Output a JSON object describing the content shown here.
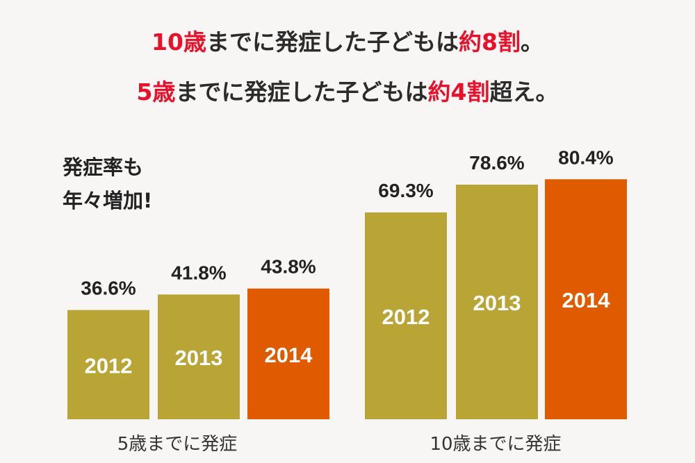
{
  "colors": {
    "highlight": "#e8102a",
    "text": "#2b2b2b",
    "olive": "#b9a535",
    "orange": "#e05a00"
  },
  "headline": [
    [
      {
        "t": "10歳",
        "hl": true
      },
      {
        "t": "までに発症した子どもは",
        "hl": false
      },
      {
        "t": "約8割",
        "hl": true
      },
      {
        "t": "。",
        "hl": false
      }
    ],
    [
      {
        "t": "5歳",
        "hl": true
      },
      {
        "t": "までに発症した子どもは",
        "hl": false
      },
      {
        "t": "約4割",
        "hl": true
      },
      {
        "t": "超え。",
        "hl": false
      }
    ]
  ],
  "side_note": {
    "line1": "発症率も",
    "line2": "年々増加!"
  },
  "chart_data": {
    "type": "bar",
    "ylim": [
      0,
      100
    ],
    "unit": "%",
    "grid": false,
    "groups": [
      {
        "label": "5歳までに発症",
        "categories": [
          "2012",
          "2013",
          "2014"
        ],
        "values": [
          36.6,
          41.8,
          43.8
        ],
        "value_labels": [
          "36.6%",
          "41.8%",
          "43.8%"
        ],
        "highlight_index": 2
      },
      {
        "label": "10歳までに発症",
        "categories": [
          "2012",
          "2013",
          "2014"
        ],
        "values": [
          69.3,
          78.6,
          80.4
        ],
        "value_labels": [
          "69.3%",
          "78.6%",
          "80.4%"
        ],
        "highlight_index": 2
      }
    ]
  }
}
